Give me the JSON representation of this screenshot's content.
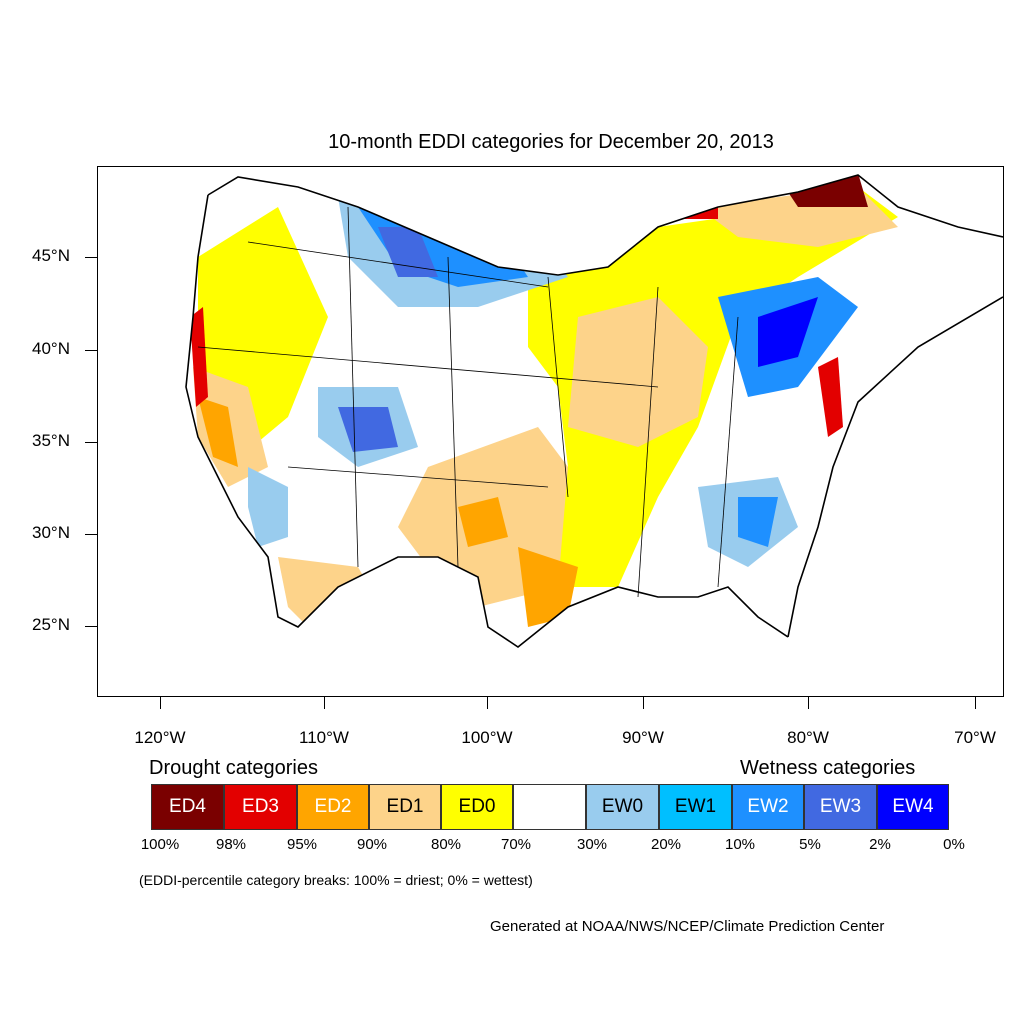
{
  "title": "10-month EDDI categories for December 20, 2013",
  "map": {
    "lat_labels": [
      "45°N",
      "40°N",
      "35°N",
      "30°N",
      "25°N"
    ],
    "lon_labels": [
      "120°W",
      "110°W",
      "100°W",
      "90°W",
      "80°W",
      "70°W"
    ]
  },
  "legend": {
    "drought_heading": "Drought categories",
    "wetness_heading": "Wetness categories",
    "categories": [
      {
        "label": "ED4",
        "color": "#7a0000",
        "text_color": "#ffffff"
      },
      {
        "label": "ED3",
        "color": "#e30000",
        "text_color": "#ffffff"
      },
      {
        "label": "ED2",
        "color": "#ffa500",
        "text_color": "#ffffff"
      },
      {
        "label": "ED1",
        "color": "#fdd38a",
        "text_color": "#000000"
      },
      {
        "label": "ED0",
        "color": "#ffff00",
        "text_color": "#000000"
      },
      {
        "label": "",
        "color": "#ffffff",
        "text_color": "#000000"
      },
      {
        "label": "EW0",
        "color": "#99ccee",
        "text_color": "#000000"
      },
      {
        "label": "EW1",
        "color": "#00bfff",
        "text_color": "#000000"
      },
      {
        "label": "EW2",
        "color": "#1e90ff",
        "text_color": "#ffffff"
      },
      {
        "label": "EW3",
        "color": "#4169e1",
        "text_color": "#ffffff"
      },
      {
        "label": "EW4",
        "color": "#0000ff",
        "text_color": "#ffffff"
      }
    ],
    "breaks": [
      "100%",
      "98%",
      "95%",
      "90%",
      "80%",
      "70%",
      "30%",
      "20%",
      "10%",
      "5%",
      "2%",
      "0%"
    ]
  },
  "note": "(EDDI-percentile category breaks: 100% = driest; 0% = wettest)",
  "credit": "Generated at NOAA/NWS/NCEP/Climate Prediction Center"
}
